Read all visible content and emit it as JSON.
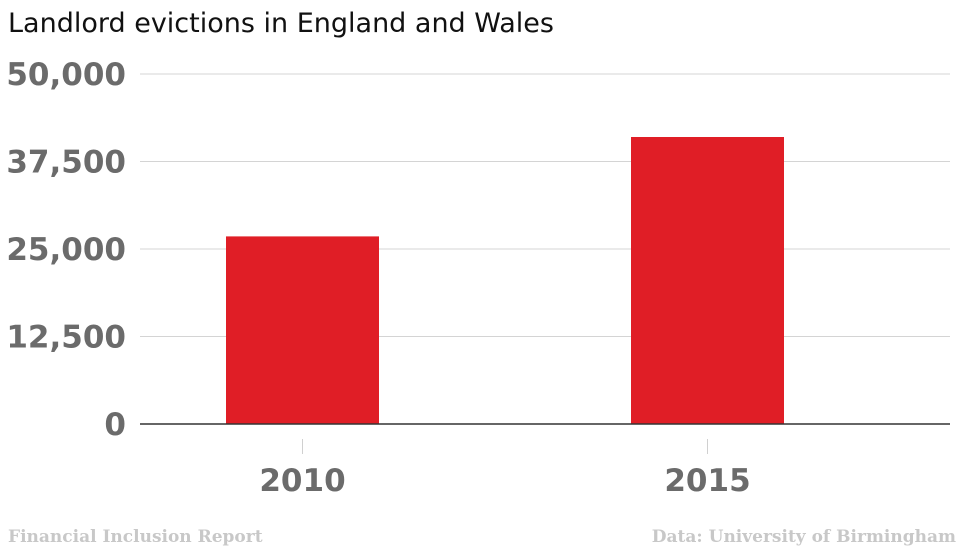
{
  "chart_data": {
    "type": "bar",
    "title": "Landlord evictions in England and Wales",
    "categories": [
      "2010",
      "2015"
    ],
    "values": [
      26800,
      41000
    ],
    "ylim": [
      0,
      50000
    ],
    "yticks": [
      0,
      12500,
      25000,
      37500,
      50000
    ],
    "ytick_labels": [
      "0",
      "12,500",
      "25,000",
      "37,500",
      "50,000"
    ],
    "xlabel": "",
    "ylabel": "",
    "grid": true,
    "bar_color": "#e01e26",
    "gridline_color": "#d4d4d4",
    "axis_color": "#333333",
    "tick_label_color": "#6b6b6b"
  },
  "footer": {
    "source_left": "Financial Inclusion Report",
    "source_right": "Data: University of Birmingham"
  }
}
